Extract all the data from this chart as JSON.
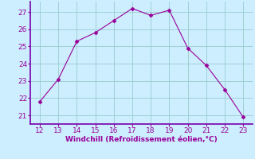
{
  "x": [
    12,
    13,
    14,
    15,
    16,
    17,
    18,
    19,
    20,
    21,
    22,
    23
  ],
  "y": [
    21.8,
    23.1,
    25.3,
    25.8,
    26.5,
    27.2,
    26.8,
    27.1,
    24.9,
    23.9,
    22.5,
    20.9
  ],
  "xlabel": "Windchill (Refroidissement éolien,°C)",
  "xlim": [
    11.5,
    23.5
  ],
  "ylim": [
    20.5,
    27.6
  ],
  "yticks": [
    21,
    22,
    23,
    24,
    25,
    26,
    27
  ],
  "xticks": [
    12,
    13,
    14,
    15,
    16,
    17,
    18,
    19,
    20,
    21,
    22,
    23
  ],
  "line_color": "#990099",
  "marker": "D",
  "marker_size": 2.5,
  "background_color": "#cceeff",
  "grid_color": "#99cccc",
  "spine_color": "#7700aa",
  "tick_color": "#990099",
  "label_color": "#990099",
  "font_size": 6.5
}
